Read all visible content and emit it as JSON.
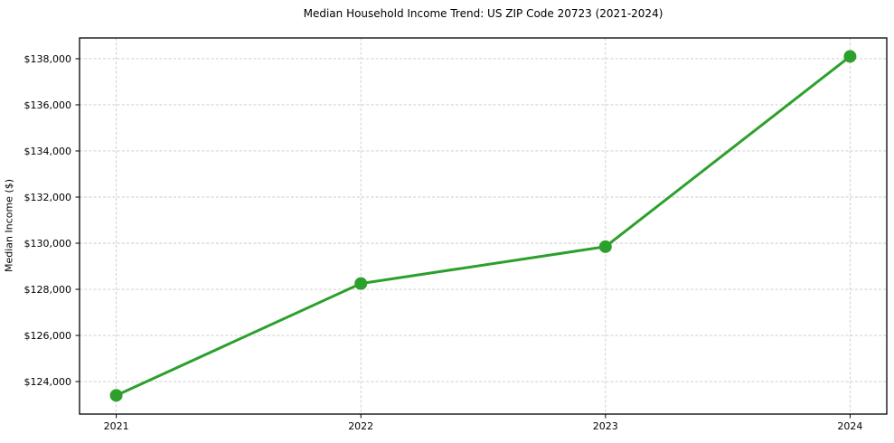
{
  "chart_data": {
    "type": "line",
    "title": "Median Household Income Trend: US ZIP Code 20723 (2021-2024)",
    "xlabel": "",
    "ylabel": "Median Income ($)",
    "categories": [
      "2021",
      "2022",
      "2023",
      "2024"
    ],
    "x": [
      2021,
      2022,
      2023,
      2024
    ],
    "series": [
      {
        "name": "Median Household Income",
        "values": [
          123400,
          128250,
          129850,
          138100
        ]
      }
    ],
    "xlim": [
      2020.85,
      2024.15
    ],
    "ylim": [
      122590,
      138900
    ],
    "xticks": [
      2021,
      2022,
      2023,
      2024
    ],
    "xtick_labels": [
      "2021",
      "2022",
      "2023",
      "2024"
    ],
    "yticks": [
      124000,
      126000,
      128000,
      130000,
      132000,
      134000,
      136000,
      138000
    ],
    "ytick_labels": [
      "$124,000",
      "$126,000",
      "$128,000",
      "$130,000",
      "$132,000",
      "$134,000",
      "$136,000",
      "$138,000"
    ],
    "grid": true,
    "grid_style": "dashed",
    "legend_position": "none",
    "colors": {
      "line": "#2ca02c",
      "marker": "#2ca02c",
      "grid": "#c9c9c9",
      "spine": "#000000",
      "background": "#ffffff",
      "text": "#000000"
    },
    "line_width": 3,
    "marker_radius": 7
  }
}
